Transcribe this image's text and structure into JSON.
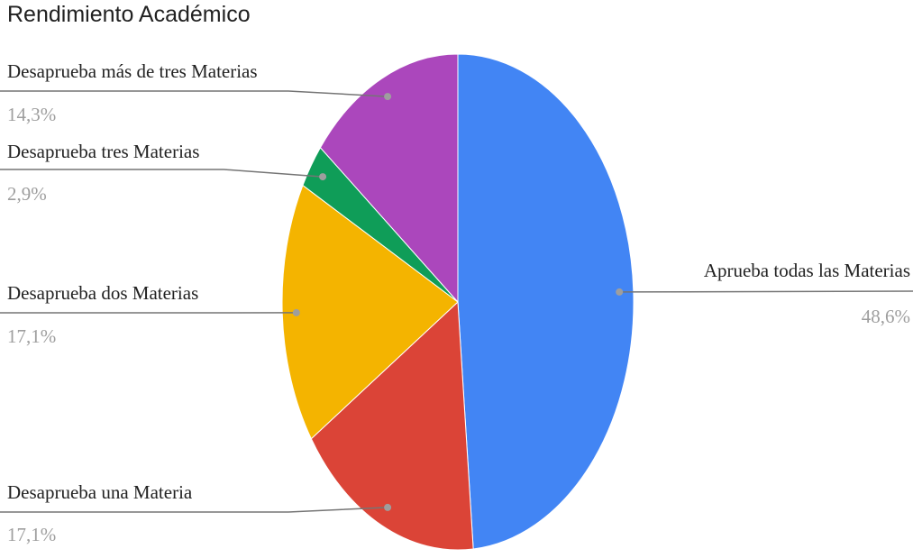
{
  "chart_data": {
    "type": "pie",
    "title": "Rendimiento Académico",
    "slices": [
      {
        "label": "Aprueba todas las Materias",
        "value": 48.6,
        "percent_label": "48,6%",
        "color": "#4285f4"
      },
      {
        "label": "Desaprueba una Materia",
        "value": 17.1,
        "percent_label": "17,1%",
        "color": "#db4437"
      },
      {
        "label": "Desaprueba dos Materias",
        "value": 17.1,
        "percent_label": "17,1%",
        "color": "#f4b400"
      },
      {
        "label": "Desaprueba tres Materias",
        "value": 2.9,
        "percent_label": "2,9%",
        "color": "#0f9d58"
      },
      {
        "label": "Desaprueba más de tres Materias",
        "value": 14.3,
        "percent_label": "14,3%",
        "color": "#ab47bc"
      }
    ]
  }
}
